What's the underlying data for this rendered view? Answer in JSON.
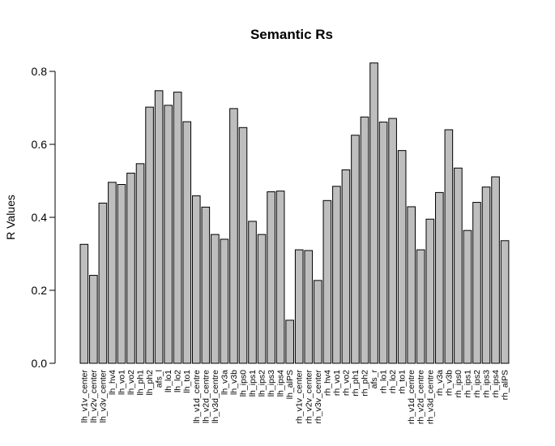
{
  "chart_data": {
    "type": "bar",
    "title": "Semantic Rs",
    "xlabel": "",
    "ylabel": "R Values",
    "ylim": [
      0,
      0.8
    ],
    "yticks": [
      0.0,
      0.2,
      0.4,
      0.6,
      0.8
    ],
    "ytick_labels": [
      "0.0",
      "0.2",
      "0.4",
      "0.6",
      "0.8"
    ],
    "bar_color": "#bebebe",
    "categories": [
      "lh_v1v_center",
      "lh_v2v_center",
      "lh_v3v_center",
      "lh_hv4",
      "lh_vo1",
      "lh_vo2",
      "lh_ph1",
      "lh_ph2",
      "afs_l",
      "lh_lo1",
      "lh_lo2",
      "lh_to1",
      "lh_v1d_centre",
      "lh_v2d_centre",
      "lh_v3d_centre",
      "lh_v3a",
      "lh_v3b",
      "lh_ips0",
      "lh_ips1",
      "lh_ips2",
      "lh_ips3",
      "lh_ips4",
      "lh_alPS",
      "rh_v1v_center",
      "rh_v2v_center",
      "rh_v3v_center",
      "rh_hv4",
      "rh_vo1",
      "rh_vo2",
      "rh_ph1",
      "rh_ph2",
      "afs_r",
      "rh_lo1",
      "rh_lo2",
      "rh_to1",
      "rh_v1d_centre",
      "rh_v2d_centre",
      "rh_v3d_centre",
      "rh_v3a",
      "rh_v3b",
      "rh_ips0",
      "rh_ips1",
      "rh_ips2",
      "rh_ips3",
      "rh_ips4",
      "rh_alPS"
    ],
    "values": [
      0.326,
      0.241,
      0.439,
      0.496,
      0.49,
      0.521,
      0.547,
      0.702,
      0.747,
      0.707,
      0.743,
      0.662,
      0.459,
      0.428,
      0.353,
      0.34,
      0.698,
      0.646,
      0.389,
      0.353,
      0.47,
      0.472,
      0.118,
      0.311,
      0.309,
      0.227,
      0.446,
      0.485,
      0.53,
      0.625,
      0.675,
      0.823,
      0.661,
      0.671,
      0.583,
      0.429,
      0.311,
      0.395,
      0.468,
      0.64,
      0.535,
      0.364,
      0.441,
      0.483,
      0.511,
      0.336
    ]
  }
}
